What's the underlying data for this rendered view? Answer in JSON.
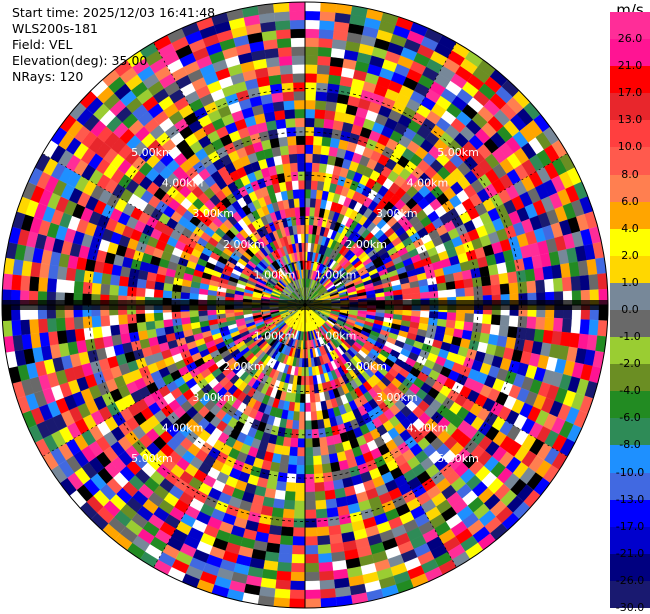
{
  "info": {
    "start_time": "Start time: 2025/12/03 16:41:48",
    "instrument": "WLS200s-181",
    "field": "Field: VEL",
    "elevation": "Elevation(deg): 35.00",
    "nrays": "NRays: 120"
  },
  "chart_data": {
    "type": "heatmap",
    "projection": "polar PPI (plan position indicator)",
    "field": "VEL",
    "units": "m/s",
    "elevation_deg": 35.0,
    "n_rays": 120,
    "range_rings_km": [
      "1.00km",
      "2.00km",
      "3.00km",
      "4.00km",
      "5.00km"
    ],
    "ring_values_km": [
      1,
      2,
      3,
      4,
      5
    ],
    "max_range_km": 7.0,
    "colorbar": {
      "unit_label": "m/s",
      "boundaries": [
        "26.0",
        "21.0",
        "17.0",
        "13.0",
        "10.0",
        "8.0",
        "6.0",
        "4.0",
        "2.0",
        "1.0",
        "0.0",
        "-1.0",
        "-2.0",
        "-4.0",
        "-6.0",
        "-8.0",
        "-10.0",
        "-13.0",
        "-17.0",
        "-21.0",
        "-26.0",
        "-30.0"
      ],
      "bins_top_to_bottom": [
        {
          "label": "26.0",
          "color": "#ff2d98"
        },
        {
          "label": "21.0",
          "color": "#ff1493"
        },
        {
          "label": "17.0",
          "color": "#ff0000"
        },
        {
          "label": "13.0",
          "color": "#e8262c"
        },
        {
          "label": "10.0",
          "color": "#ff3f3f"
        },
        {
          "label": "8.0",
          "color": "#ff5a4d"
        },
        {
          "label": "6.0",
          "color": "#ff7f50"
        },
        {
          "label": "4.0",
          "color": "#ffa500"
        },
        {
          "label": "2.0",
          "color": "#ffff00"
        },
        {
          "label": "1.0",
          "color": "#ffd700"
        },
        {
          "label": "0.0",
          "color": "#778899"
        },
        {
          "label": "-1.0",
          "color": "#696969"
        },
        {
          "label": "-2.0",
          "color": "#9acd32"
        },
        {
          "label": "-4.0",
          "color": "#6b8e23"
        },
        {
          "label": "-6.0",
          "color": "#228b22"
        },
        {
          "label": "-8.0",
          "color": "#2e8b57"
        },
        {
          "label": "-10.0",
          "color": "#1e90ff"
        },
        {
          "label": "-13.0",
          "color": "#4169e1"
        },
        {
          "label": "-17.0",
          "color": "#0000ff"
        },
        {
          "label": "-21.0",
          "color": "#0000cd"
        },
        {
          "label": "-26.0",
          "color": "#000080"
        },
        {
          "label": "-30.0",
          "color": "#191970"
        }
      ]
    },
    "near_field_pattern": "small-magnitude velocities (green sector north, yellow sector south) within ~1 km; far field highly noisy across full color range"
  }
}
